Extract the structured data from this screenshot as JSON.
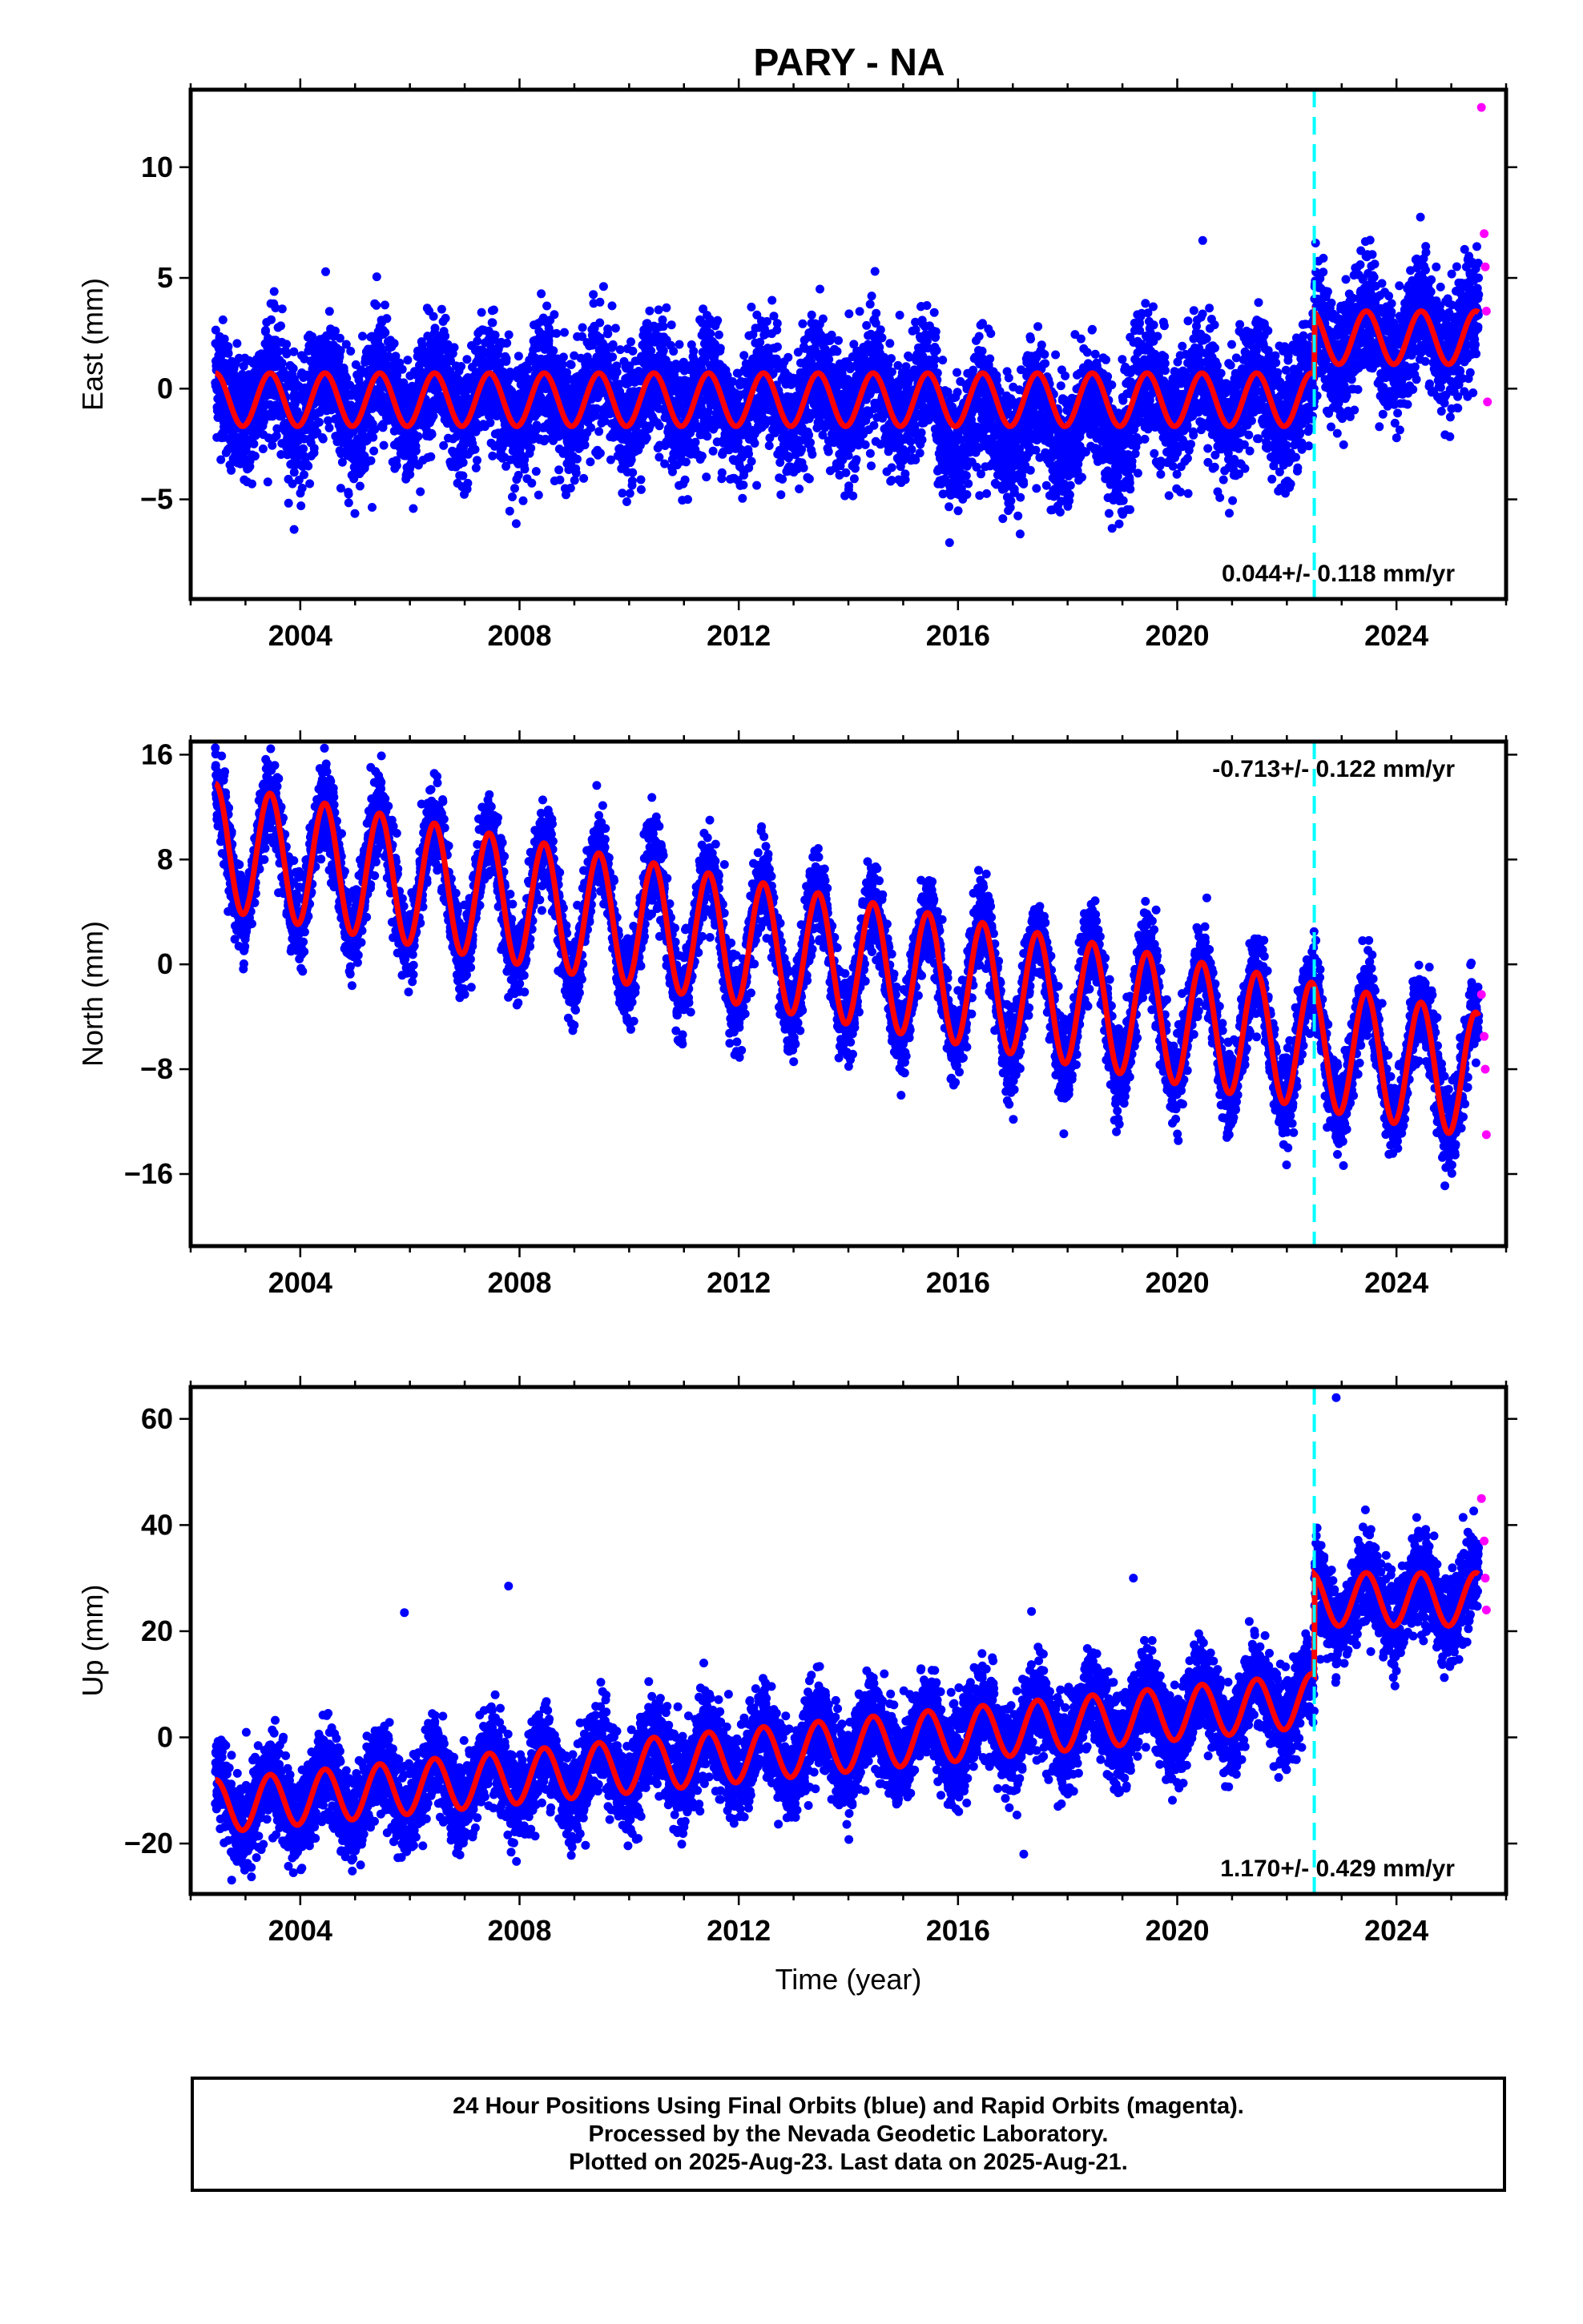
{
  "title": "PARY - NA",
  "xlabel": "Time (year)",
  "footer": {
    "line1": "24 Hour Positions Using Final Orbits (blue) and Rapid Orbits (magenta).",
    "line2": "Processed by the Nevada Geodetic Laboratory.",
    "line3": "Plotted on 2025-Aug-23. Last data on 2025-Aug-21."
  },
  "colors": {
    "final_orbits": "#0000ff",
    "rapid_orbits": "#ff00ff",
    "model": "#ff0000",
    "equipment_change": "#00ffff"
  },
  "chart_data": [
    {
      "type": "scatter",
      "ylabel": "East (mm)",
      "xlim": [
        2002.0,
        2026.0
      ],
      "ylim": [
        -9.5,
        13.5
      ],
      "xticks": [
        2004,
        2008,
        2012,
        2016,
        2020,
        2024
      ],
      "yticks": [
        -5,
        0,
        5,
        10
      ],
      "ytick_labels": [
        "−5",
        "0",
        "5",
        "10"
      ],
      "rate": "0.044+/- 0.118 mm/yr",
      "rate_position": "bottom-right",
      "equipment_change_year": 2022.5,
      "offset_at_change": 2.5,
      "series": [
        {
          "name": "Final Orbits",
          "values_summary": {
            "start": 2002.45,
            "end": 2025.5,
            "mean_before_change": -0.5,
            "mean_after_change": 2.5,
            "scatter_sd": 1.4
          }
        },
        {
          "name": "Rapid Orbits",
          "x": [
            2025.55,
            2025.6,
            2025.62,
            2025.64,
            2025.66
          ],
          "y": [
            12.7,
            7.0,
            5.5,
            3.5,
            -0.6
          ]
        }
      ],
      "model": {
        "name": "fit",
        "annual_amplitude": 1.2,
        "pre_change_level": -0.5,
        "post_change_level": 2.3
      }
    },
    {
      "type": "scatter",
      "ylabel": "North (mm)",
      "xlim": [
        2002.0,
        2026.0
      ],
      "ylim": [
        -21.5,
        17.0
      ],
      "xticks": [
        2004,
        2008,
        2012,
        2016,
        2020,
        2024
      ],
      "yticks": [
        -16,
        -8,
        0,
        8,
        16
      ],
      "ytick_labels": [
        "−16",
        "−8",
        "0",
        "8",
        "16"
      ],
      "rate": "-0.713+/- 0.122 mm/yr",
      "rate_position": "top-right",
      "equipment_change_year": 2022.5,
      "series": [
        {
          "name": "Final Orbits",
          "values_summary": {
            "start": 2002.45,
            "end": 2025.5,
            "start_mean": 9.0,
            "end_mean": -8.5,
            "annual_amplitude": 4.5
          }
        },
        {
          "name": "Rapid Orbits",
          "x": [
            2025.55,
            2025.6,
            2025.62,
            2025.64
          ],
          "y": [
            -2.3,
            -5.5,
            -8.0,
            -13.0
          ]
        }
      ],
      "model": {
        "name": "fit",
        "annual_amplitude": 4.8,
        "start": 9.0,
        "end": -8.5
      }
    },
    {
      "type": "scatter",
      "ylabel": "Up (mm)",
      "xlim": [
        2002.0,
        2026.0
      ],
      "ylim": [
        -29.5,
        66.0
      ],
      "xticks": [
        2004,
        2008,
        2012,
        2016,
        2020,
        2024
      ],
      "yticks": [
        -20,
        0,
        20,
        40,
        60
      ],
      "ytick_labels": [
        "−20",
        "0",
        "20",
        "40",
        "60"
      ],
      "rate": "1.170+/- 0.429 mm/yr",
      "rate_position": "bottom-right",
      "equipment_change_year": 2022.5,
      "offset_at_change": 19.0,
      "series": [
        {
          "name": "Final Orbits",
          "values_summary": {
            "start": 2002.45,
            "end": 2025.5,
            "start_mean": -12.0,
            "mean_before_change": 7.0,
            "mean_after_change": 27.0,
            "scatter_sd": 4.5
          }
        },
        {
          "name": "Rapid Orbits",
          "x": [
            2025.55,
            2025.6,
            2025.62,
            2025.64
          ],
          "y": [
            45.0,
            37.0,
            30.0,
            24.0
          ]
        }
      ],
      "outliers": [
        [
          2005.9,
          23.5
        ],
        [
          2007.8,
          28.5
        ],
        [
          2019.2,
          30.0
        ],
        [
          2022.9,
          64.0
        ],
        [
          2017.2,
          -22.0
        ]
      ],
      "model": {
        "name": "fit",
        "annual_amplitude": 5.0,
        "start": -13.0,
        "pre_change_end": 7.0,
        "post_change_level": 26.0
      }
    }
  ]
}
